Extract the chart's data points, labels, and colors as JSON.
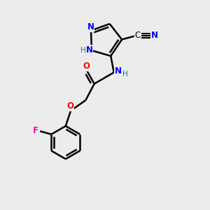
{
  "background_color": "#ececec",
  "atom_colors": {
    "N": "#0000ff",
    "O": "#ff0000",
    "F": "#ff00cc",
    "C": "#000000",
    "H_label": "#008080"
  },
  "bond_color": "#000000",
  "bond_width": 1.8
}
